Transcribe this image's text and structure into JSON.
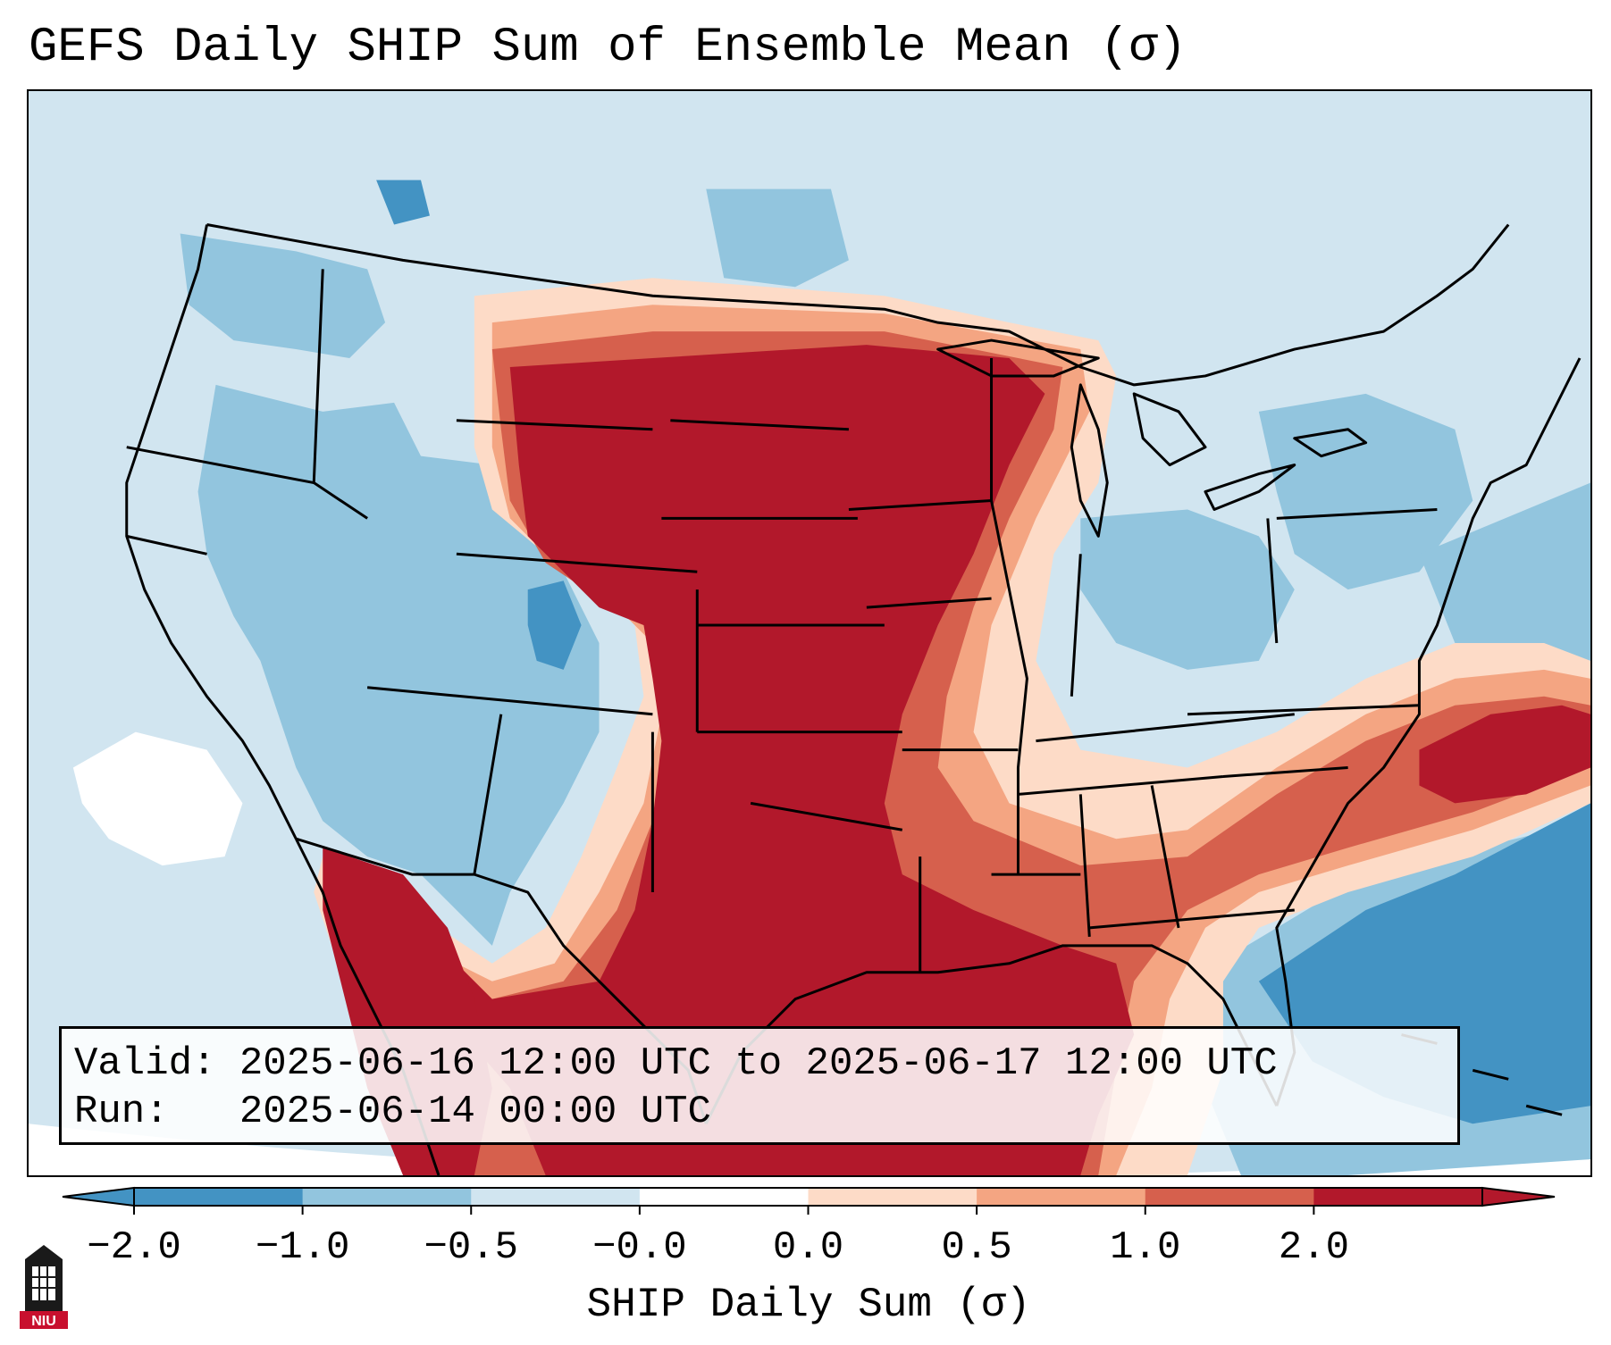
{
  "title": "GEFS Daily SHIP Sum of Ensemble Mean (σ)",
  "info": {
    "valid_line": "Valid: 2025-06-16 12:00 UTC to 2025-06-17 12:00 UTC",
    "run_line": "Run:   2025-06-14 00:00 UTC"
  },
  "colorbar": {
    "label": "SHIP Daily Sum (σ)",
    "tick_labels": [
      "−2.0",
      "−1.0",
      "−0.5",
      "−0.0",
      "0.0",
      "0.5",
      "1.0",
      "2.0"
    ],
    "bin_colors": [
      "#4393c3",
      "#92c5de",
      "#d1e5f0",
      "#ffffff",
      "#fddbc7",
      "#f4a582",
      "#d6604d",
      "#b2182b"
    ],
    "extend": "both"
  },
  "map": {
    "region": "Continental United States",
    "field_colors": {
      "strong_positive": "#b2182b",
      "positive": "#d6604d",
      "weak_positive": "#f4a582",
      "slight_positive": "#fddbc7",
      "near_zero": "#ffffff",
      "slight_negative": "#d1e5f0",
      "weak_negative": "#92c5de",
      "negative": "#4393c3",
      "outside": "#ffffff",
      "boundary": "#000000"
    }
  },
  "logo": {
    "text": "NIU",
    "color": "#c8102e"
  }
}
